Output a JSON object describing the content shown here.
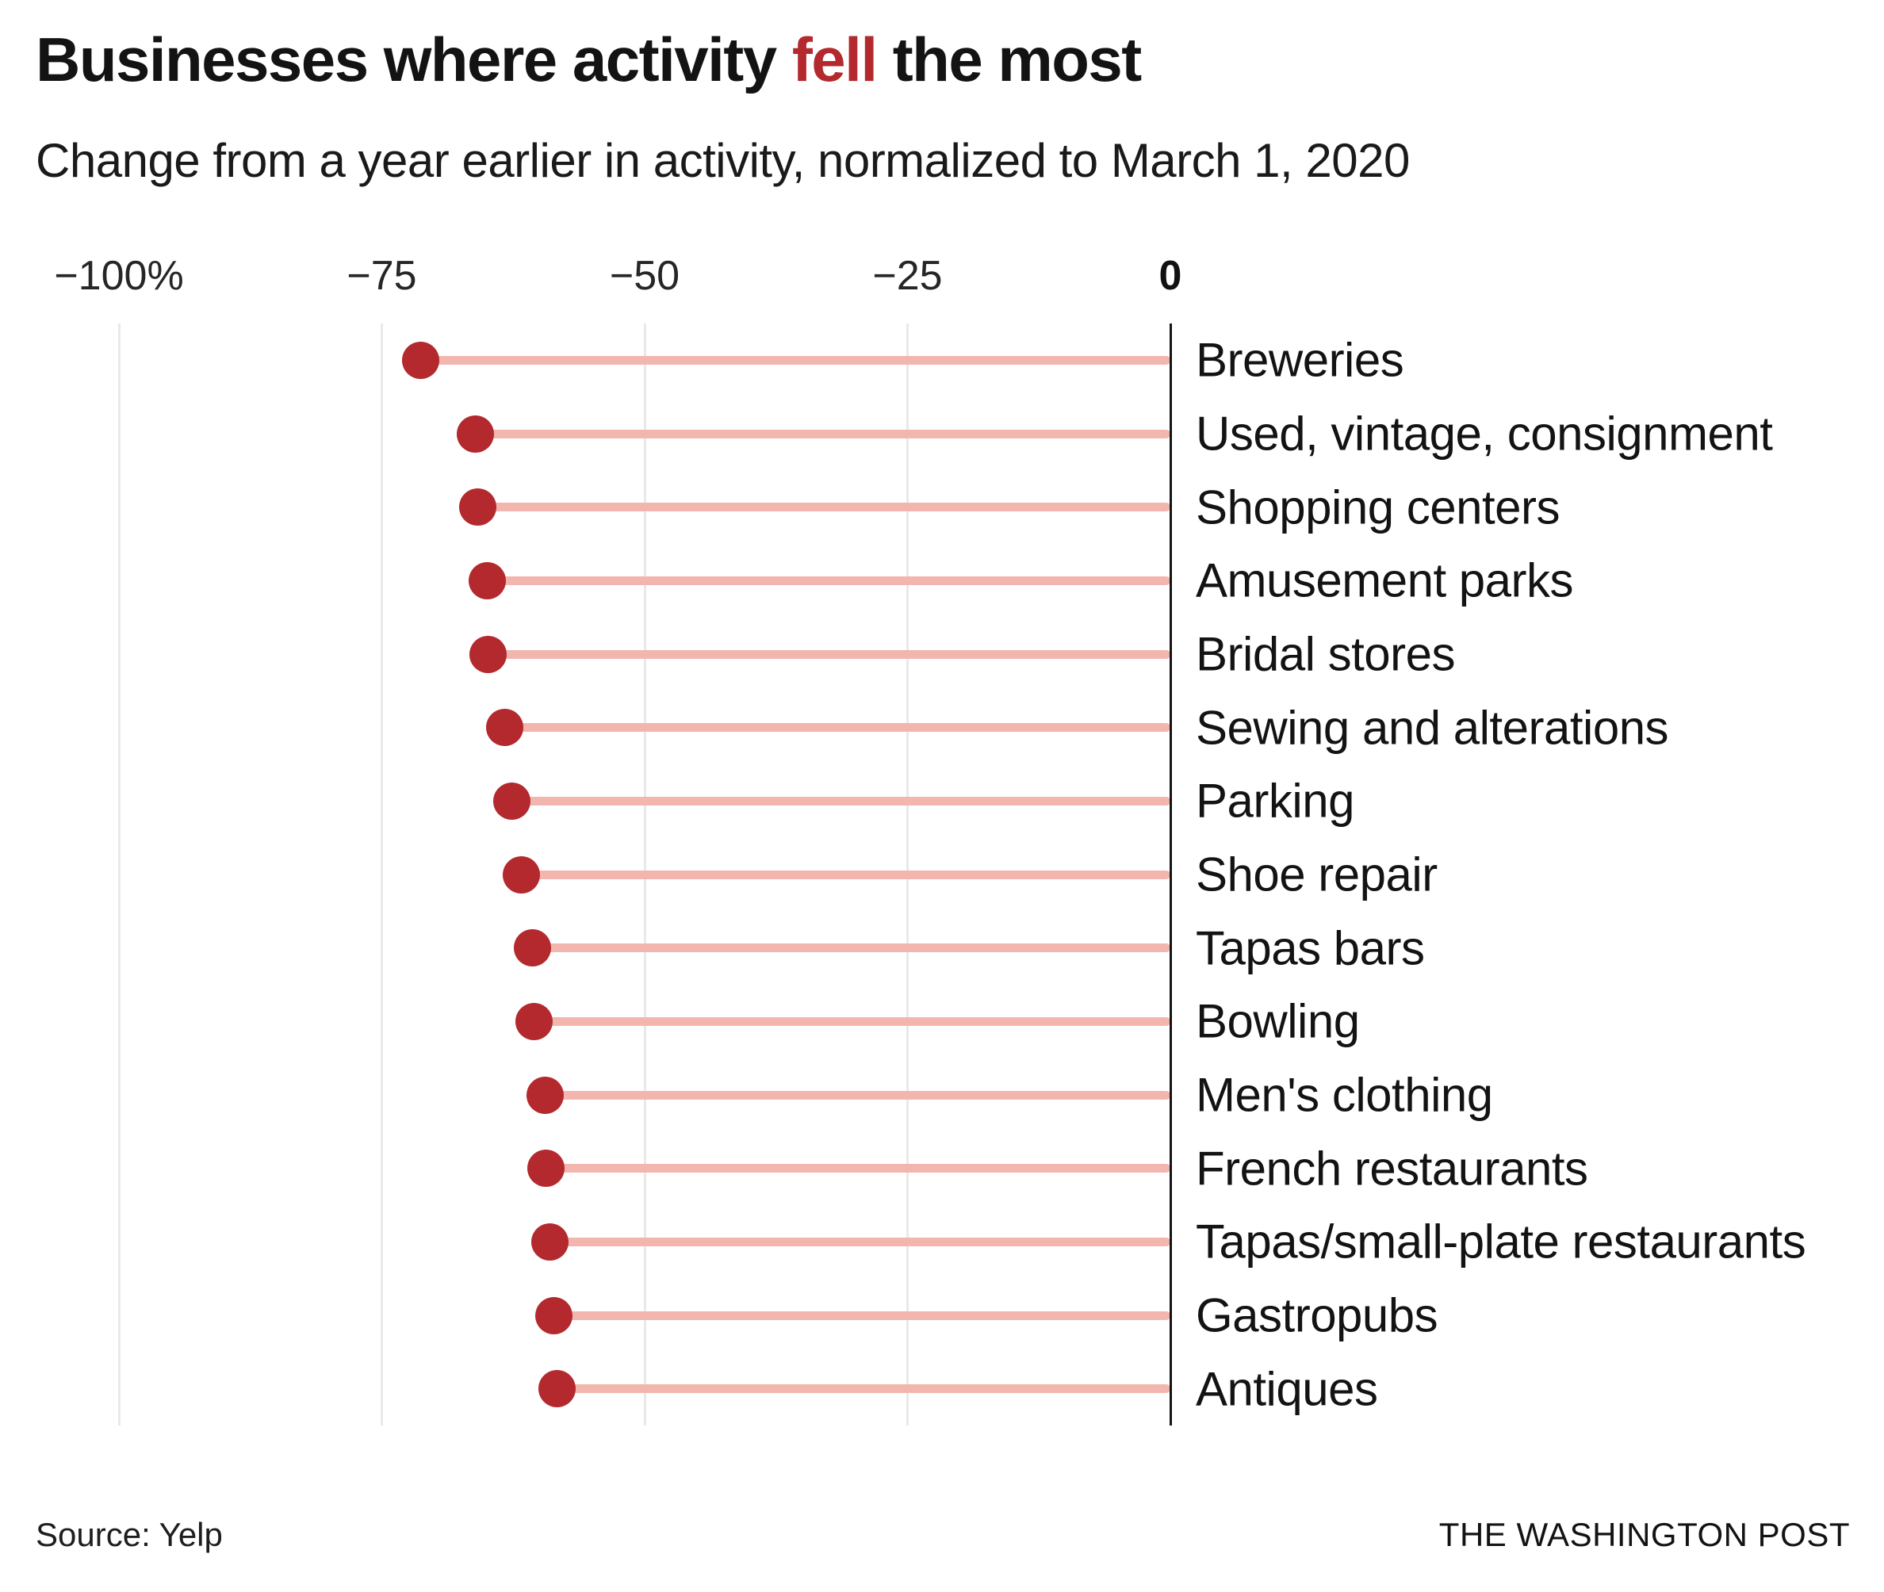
{
  "header": {
    "title_prefix": "Businesses where activity ",
    "title_highlight": "fell",
    "title_suffix": " the most",
    "subtitle": "Change from a year earlier in activity, normalized to March 1, 2020"
  },
  "chart_data": {
    "type": "bar",
    "variant": "horizontal-lollipop",
    "categories": [
      "Breweries",
      "Used, vintage, consignment",
      "Shopping centers",
      "Amusement parks",
      "Bridal stores",
      "Sewing and alterations",
      "Parking",
      "Shoe repair",
      "Tapas bars",
      "Bowling",
      "Men's clothing",
      "French restaurants",
      "Tapas/small-plate restaurants",
      "Gastropubs",
      "Antiques"
    ],
    "values": [
      -71.3,
      -66.1,
      -65.9,
      -65.0,
      -64.9,
      -63.3,
      -62.6,
      -61.7,
      -60.7,
      -60.5,
      -59.5,
      -59.4,
      -59.0,
      -58.6,
      -58.3
    ],
    "unit": "percent change from a year earlier",
    "title": "Businesses where activity fell the most",
    "xlabel": "",
    "ylabel": "",
    "xlim": [
      -100,
      0
    ],
    "grid": "vertical-gridlines-on",
    "legend": "none",
    "x_ticks": [
      {
        "value": -100,
        "label": "−100%",
        "bold": false
      },
      {
        "value": -75,
        "label": "−75",
        "bold": false
      },
      {
        "value": -50,
        "label": "−50",
        "bold": false
      },
      {
        "value": -25,
        "label": "−25",
        "bold": false
      },
      {
        "value": 0,
        "label": "0",
        "bold": true
      }
    ],
    "colors": {
      "dot": "#b3292e",
      "stem": "#f3b6ae",
      "accent_text": "#b3292e",
      "gridline": "#e9e9e9",
      "axis_line": "#141414"
    }
  },
  "footer": {
    "source": "Source: Yelp",
    "publisher": "THE WASHINGTON POST"
  }
}
